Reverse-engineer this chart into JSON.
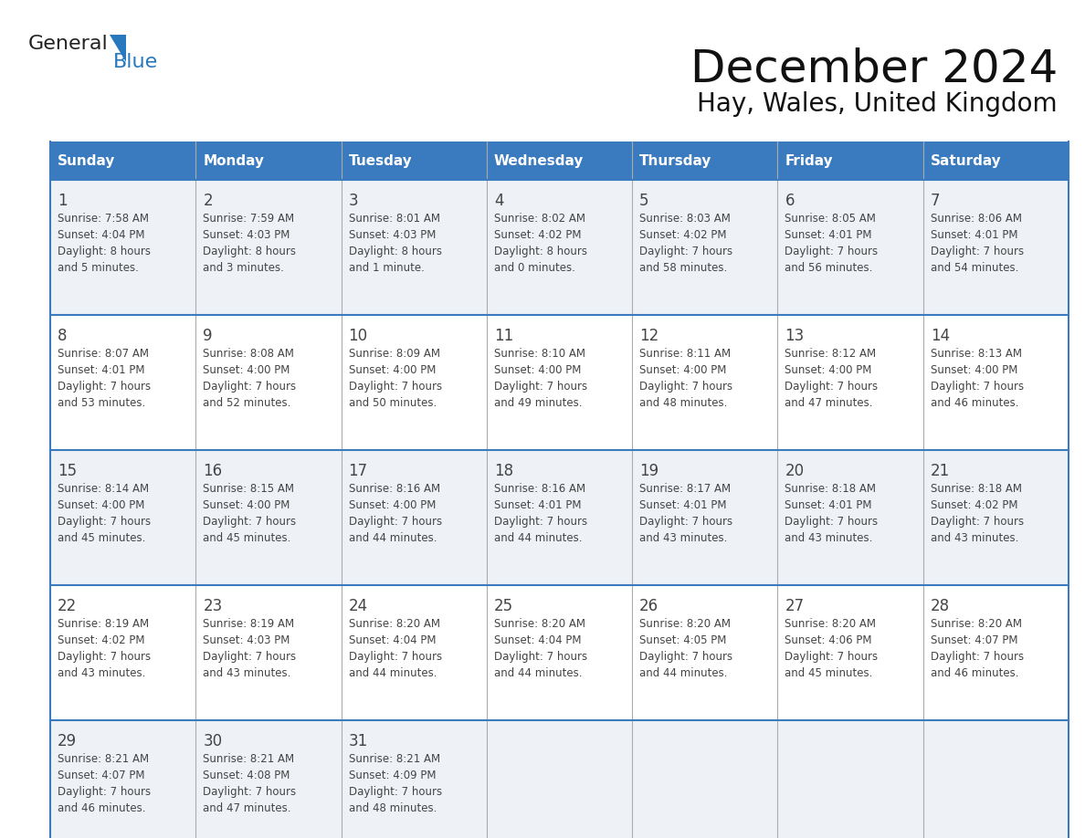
{
  "title": "December 2024",
  "subtitle": "Hay, Wales, United Kingdom",
  "header_color": "#3a7bbf",
  "header_text_color": "#ffffff",
  "cell_bg_odd": "#eef2f7",
  "cell_bg_even": "#ffffff",
  "day_headers": [
    "Sunday",
    "Monday",
    "Tuesday",
    "Wednesday",
    "Thursday",
    "Friday",
    "Saturday"
  ],
  "weeks": [
    [
      {
        "day": "1",
        "sunrise": "7:58 AM",
        "sunset": "4:04 PM",
        "daylight1": "8 hours",
        "daylight2": "and 5 minutes."
      },
      {
        "day": "2",
        "sunrise": "7:59 AM",
        "sunset": "4:03 PM",
        "daylight1": "8 hours",
        "daylight2": "and 3 minutes."
      },
      {
        "day": "3",
        "sunrise": "8:01 AM",
        "sunset": "4:03 PM",
        "daylight1": "8 hours",
        "daylight2": "and 1 minute."
      },
      {
        "day": "4",
        "sunrise": "8:02 AM",
        "sunset": "4:02 PM",
        "daylight1": "8 hours",
        "daylight2": "and 0 minutes."
      },
      {
        "day": "5",
        "sunrise": "8:03 AM",
        "sunset": "4:02 PM",
        "daylight1": "7 hours",
        "daylight2": "and 58 minutes."
      },
      {
        "day": "6",
        "sunrise": "8:05 AM",
        "sunset": "4:01 PM",
        "daylight1": "7 hours",
        "daylight2": "and 56 minutes."
      },
      {
        "day": "7",
        "sunrise": "8:06 AM",
        "sunset": "4:01 PM",
        "daylight1": "7 hours",
        "daylight2": "and 54 minutes."
      }
    ],
    [
      {
        "day": "8",
        "sunrise": "8:07 AM",
        "sunset": "4:01 PM",
        "daylight1": "7 hours",
        "daylight2": "and 53 minutes."
      },
      {
        "day": "9",
        "sunrise": "8:08 AM",
        "sunset": "4:00 PM",
        "daylight1": "7 hours",
        "daylight2": "and 52 minutes."
      },
      {
        "day": "10",
        "sunrise": "8:09 AM",
        "sunset": "4:00 PM",
        "daylight1": "7 hours",
        "daylight2": "and 50 minutes."
      },
      {
        "day": "11",
        "sunrise": "8:10 AM",
        "sunset": "4:00 PM",
        "daylight1": "7 hours",
        "daylight2": "and 49 minutes."
      },
      {
        "day": "12",
        "sunrise": "8:11 AM",
        "sunset": "4:00 PM",
        "daylight1": "7 hours",
        "daylight2": "and 48 minutes."
      },
      {
        "day": "13",
        "sunrise": "8:12 AM",
        "sunset": "4:00 PM",
        "daylight1": "7 hours",
        "daylight2": "and 47 minutes."
      },
      {
        "day": "14",
        "sunrise": "8:13 AM",
        "sunset": "4:00 PM",
        "daylight1": "7 hours",
        "daylight2": "and 46 minutes."
      }
    ],
    [
      {
        "day": "15",
        "sunrise": "8:14 AM",
        "sunset": "4:00 PM",
        "daylight1": "7 hours",
        "daylight2": "and 45 minutes."
      },
      {
        "day": "16",
        "sunrise": "8:15 AM",
        "sunset": "4:00 PM",
        "daylight1": "7 hours",
        "daylight2": "and 45 minutes."
      },
      {
        "day": "17",
        "sunrise": "8:16 AM",
        "sunset": "4:00 PM",
        "daylight1": "7 hours",
        "daylight2": "and 44 minutes."
      },
      {
        "day": "18",
        "sunrise": "8:16 AM",
        "sunset": "4:01 PM",
        "daylight1": "7 hours",
        "daylight2": "and 44 minutes."
      },
      {
        "day": "19",
        "sunrise": "8:17 AM",
        "sunset": "4:01 PM",
        "daylight1": "7 hours",
        "daylight2": "and 43 minutes."
      },
      {
        "day": "20",
        "sunrise": "8:18 AM",
        "sunset": "4:01 PM",
        "daylight1": "7 hours",
        "daylight2": "and 43 minutes."
      },
      {
        "day": "21",
        "sunrise": "8:18 AM",
        "sunset": "4:02 PM",
        "daylight1": "7 hours",
        "daylight2": "and 43 minutes."
      }
    ],
    [
      {
        "day": "22",
        "sunrise": "8:19 AM",
        "sunset": "4:02 PM",
        "daylight1": "7 hours",
        "daylight2": "and 43 minutes."
      },
      {
        "day": "23",
        "sunrise": "8:19 AM",
        "sunset": "4:03 PM",
        "daylight1": "7 hours",
        "daylight2": "and 43 minutes."
      },
      {
        "day": "24",
        "sunrise": "8:20 AM",
        "sunset": "4:04 PM",
        "daylight1": "7 hours",
        "daylight2": "and 44 minutes."
      },
      {
        "day": "25",
        "sunrise": "8:20 AM",
        "sunset": "4:04 PM",
        "daylight1": "7 hours",
        "daylight2": "and 44 minutes."
      },
      {
        "day": "26",
        "sunrise": "8:20 AM",
        "sunset": "4:05 PM",
        "daylight1": "7 hours",
        "daylight2": "and 44 minutes."
      },
      {
        "day": "27",
        "sunrise": "8:20 AM",
        "sunset": "4:06 PM",
        "daylight1": "7 hours",
        "daylight2": "and 45 minutes."
      },
      {
        "day": "28",
        "sunrise": "8:20 AM",
        "sunset": "4:07 PM",
        "daylight1": "7 hours",
        "daylight2": "and 46 minutes."
      }
    ],
    [
      {
        "day": "29",
        "sunrise": "8:21 AM",
        "sunset": "4:07 PM",
        "daylight1": "7 hours",
        "daylight2": "and 46 minutes."
      },
      {
        "day": "30",
        "sunrise": "8:21 AM",
        "sunset": "4:08 PM",
        "daylight1": "7 hours",
        "daylight2": "and 47 minutes."
      },
      {
        "day": "31",
        "sunrise": "8:21 AM",
        "sunset": "4:09 PM",
        "daylight1": "7 hours",
        "daylight2": "and 48 minutes."
      },
      null,
      null,
      null,
      null
    ]
  ],
  "logo_general_color": "#222222",
  "logo_blue_color": "#2878be",
  "logo_triangle_color": "#2878be",
  "grid_line_color": "#3a7bbf",
  "text_color": "#444444",
  "title_fontsize": 36,
  "subtitle_fontsize": 20,
  "header_fontsize": 11,
  "day_num_fontsize": 12,
  "cell_fontsize": 8.5
}
